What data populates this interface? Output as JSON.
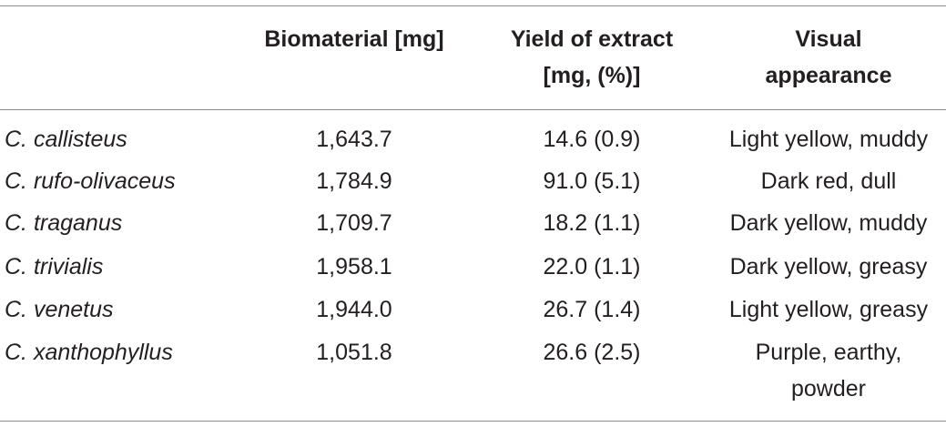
{
  "header": {
    "biomaterial": "Biomaterial [mg]",
    "yield_line1": "Yield of extract",
    "yield_line2": "[mg, (%)]",
    "visual_line1": "Visual",
    "visual_line2": "appearance"
  },
  "rows": [
    {
      "species": "C. callisteus",
      "biomaterial": "1,643.7",
      "yield": "14.6 (0.9)",
      "appearance": "Light yellow, muddy"
    },
    {
      "species": "C. rufo-olivaceus",
      "biomaterial": "1,784.9",
      "yield": "91.0 (5.1)",
      "appearance": "Dark red, dull"
    },
    {
      "species": "C. traganus",
      "biomaterial": "1,709.7",
      "yield": "18.2 (1.1)",
      "appearance": "Dark yellow, muddy"
    },
    {
      "species": "C. trivialis",
      "biomaterial": "1,958.1",
      "yield": "22.0 (1.1)",
      "appearance": "Dark yellow, greasy"
    },
    {
      "species": "C. venetus",
      "biomaterial": "1,944.0",
      "yield": "26.7 (1.4)",
      "appearance": "Light yellow, greasy"
    },
    {
      "species": "C. xanthophyllus",
      "biomaterial": "1,051.8",
      "yield": "26.6 (2.5)",
      "appearance_line1": "Purple, earthy,",
      "appearance_line2": "powder"
    }
  ],
  "colors": {
    "text": "#231f20",
    "rule": "#8c8c8c"
  }
}
